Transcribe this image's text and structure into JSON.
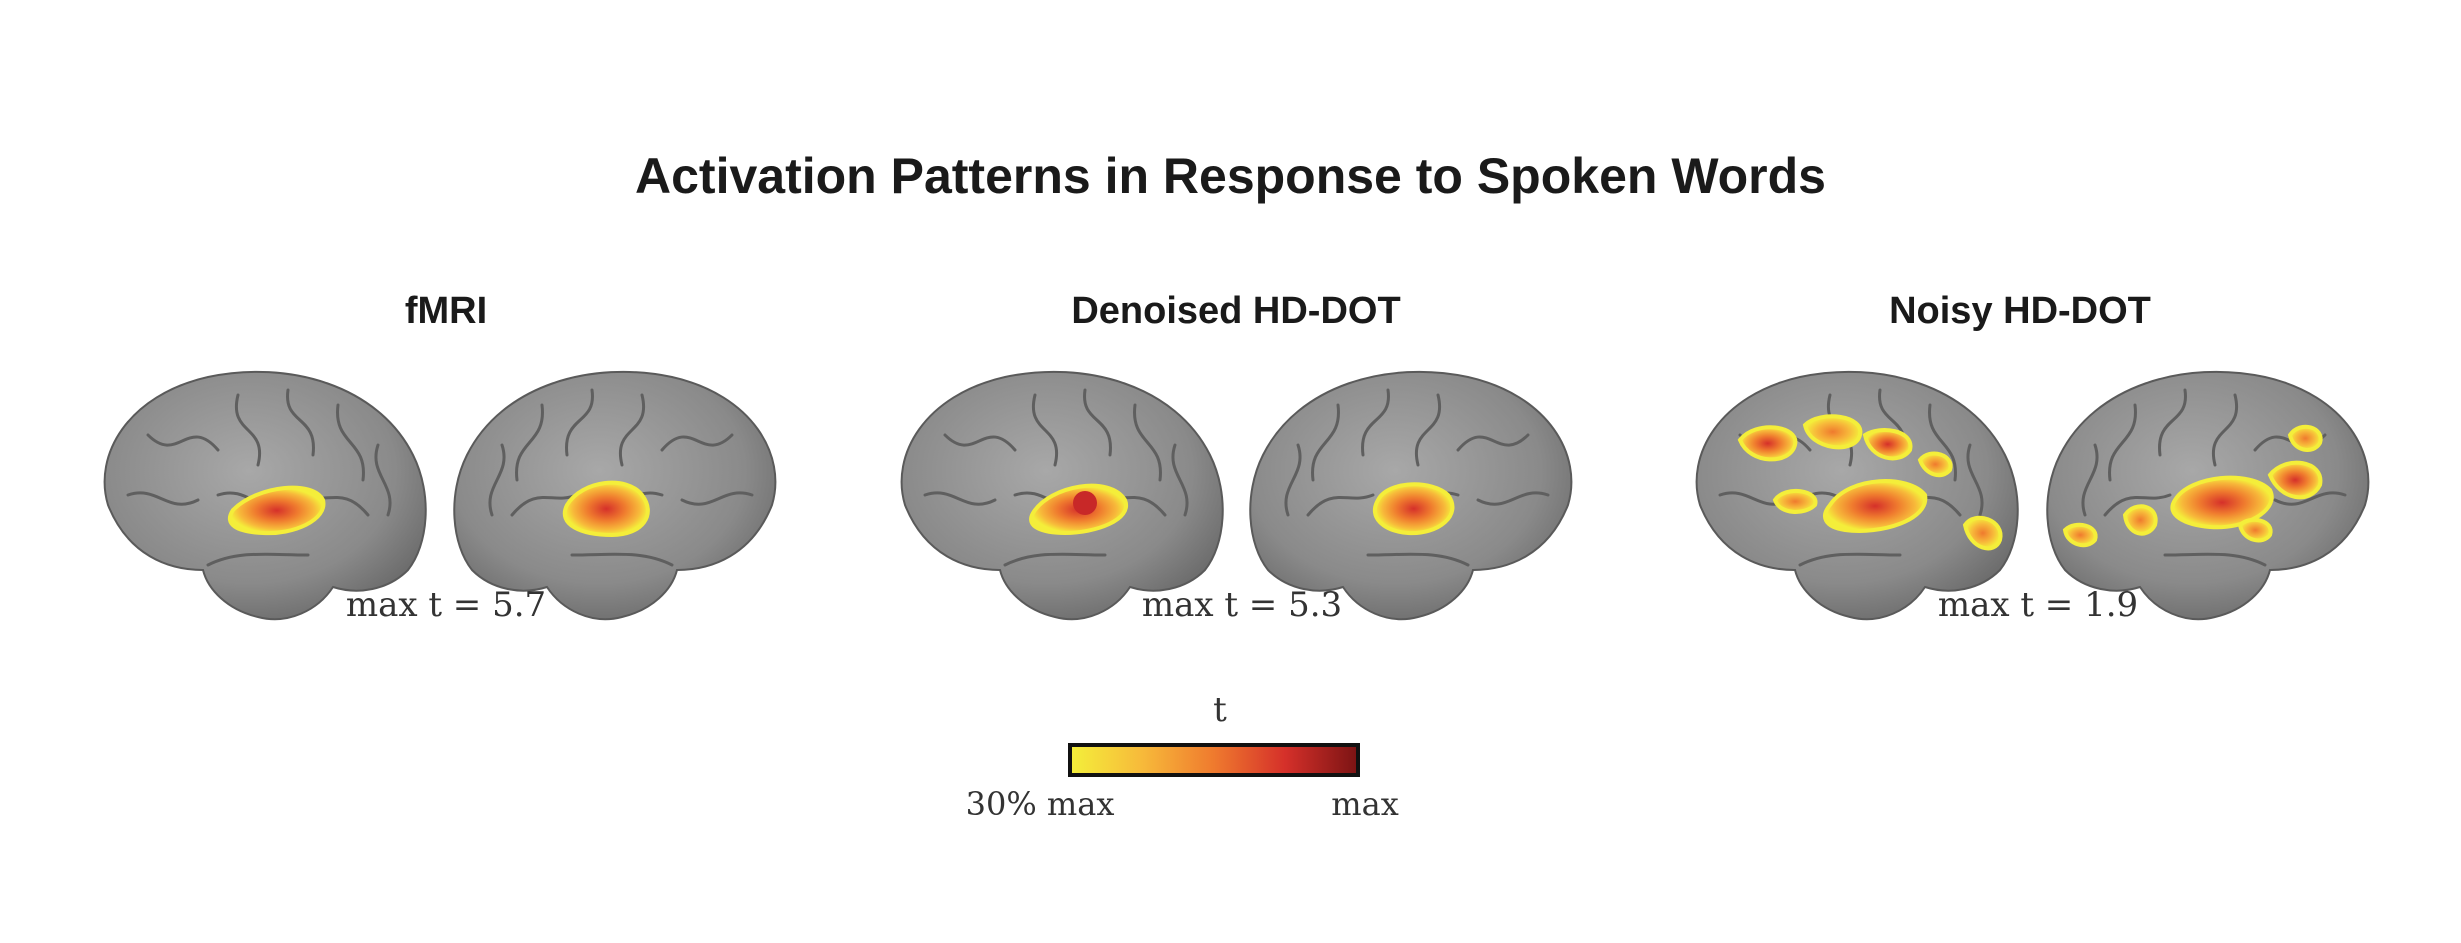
{
  "title": "Activation Patterns in Response to Spoken Words",
  "panels": [
    {
      "label": "fMRI",
      "max_label": "max t = 5.7"
    },
    {
      "label": "Denoised HD-DOT",
      "max_label": "max t = 5.3"
    },
    {
      "label": "Noisy HD-DOT",
      "max_label": "max t = 1.9"
    }
  ],
  "colorbar": {
    "title": "t",
    "low_label": "30% max",
    "high_label": "max",
    "colors": [
      "#f4ee3a",
      "#f7b93a",
      "#ef7a2e",
      "#d5302a",
      "#7d1414"
    ]
  },
  "brain_color": "#8e8e8e"
}
